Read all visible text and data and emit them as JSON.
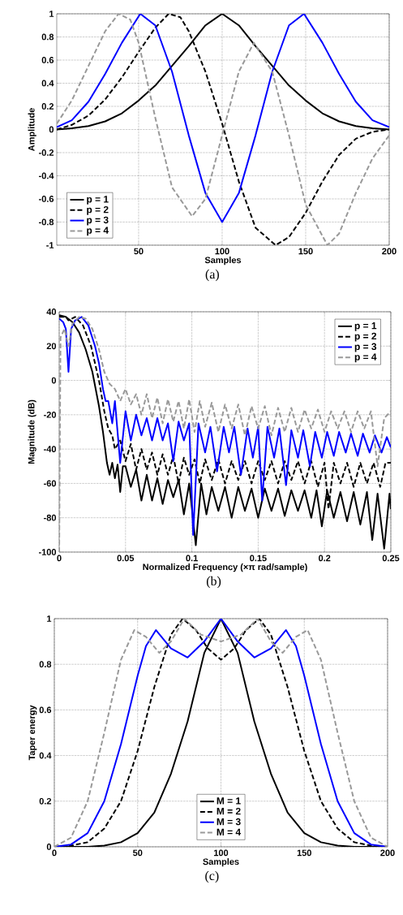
{
  "chart_data": [
    {
      "type": "line",
      "xlabel": "Samples",
      "ylabel": "Amplitude",
      "annotations": [
        "(a)"
      ],
      "xlim": [
        1,
        200
      ],
      "xticks": [
        50,
        100,
        150,
        200
      ],
      "ylim": [
        -1,
        1
      ],
      "yticks": [
        -1,
        -0.8,
        -0.6,
        -0.4,
        -0.2,
        0,
        0.2,
        0.4,
        0.6,
        0.8,
        1
      ],
      "grid": true,
      "legend": "bottom left",
      "series": [
        {
          "name": "p = 1",
          "color": "#000000",
          "line_style": "solid",
          "x": [
            1,
            10,
            20,
            30,
            40,
            50,
            60,
            70,
            80,
            90,
            100,
            110,
            120,
            130,
            140,
            150,
            160,
            170,
            180,
            190,
            200
          ],
          "values": [
            0,
            0.01,
            0.03,
            0.07,
            0.14,
            0.25,
            0.38,
            0.55,
            0.72,
            0.9,
            1,
            0.9,
            0.72,
            0.55,
            0.38,
            0.25,
            0.14,
            0.07,
            0.03,
            0.01,
            0
          ]
        },
        {
          "name": "p = 2",
          "color": "#000000",
          "line_style": "dashed",
          "x": [
            1,
            10,
            20,
            30,
            40,
            50,
            60,
            68,
            75,
            80,
            90,
            100,
            110,
            120,
            132,
            140,
            150,
            160,
            170,
            180,
            190,
            200
          ],
          "values": [
            0,
            0.04,
            0.12,
            0.26,
            0.45,
            0.67,
            0.88,
            1,
            0.97,
            0.85,
            0.5,
            0.05,
            -0.45,
            -0.85,
            -1,
            -0.93,
            -0.72,
            -0.45,
            -0.22,
            -0.08,
            -0.02,
            0
          ]
        },
        {
          "name": "p = 3",
          "color": "#0000ff",
          "line_style": "solid",
          "x": [
            1,
            10,
            20,
            30,
            40,
            51,
            60,
            70,
            80,
            90,
            100,
            110,
            120,
            130,
            140,
            149,
            160,
            170,
            180,
            190,
            200
          ],
          "values": [
            0.02,
            0.08,
            0.24,
            0.48,
            0.75,
            1,
            0.9,
            0.5,
            -0.05,
            -0.55,
            -0.8,
            -0.55,
            -0.05,
            0.5,
            0.9,
            1,
            0.75,
            0.48,
            0.24,
            0.08,
            0.02
          ]
        },
        {
          "name": "p = 4",
          "color": "#999999",
          "line_style": "dashed",
          "x": [
            1,
            10,
            20,
            30,
            38,
            45,
            50,
            60,
            70,
            82,
            90,
            100,
            110,
            119,
            130,
            140,
            150,
            163,
            170,
            180,
            190,
            200
          ],
          "values": [
            0.05,
            0.25,
            0.55,
            0.85,
            1,
            0.95,
            0.75,
            0.1,
            -0.5,
            -0.75,
            -0.6,
            -0.05,
            0.5,
            0.75,
            0.5,
            -0.05,
            -0.65,
            -1,
            -0.9,
            -0.55,
            -0.25,
            -0.05
          ]
        }
      ]
    },
    {
      "type": "line",
      "xlabel": "Normalized Frequency  (×π rad/sample)",
      "ylabel": "Magnitude (dB)",
      "annotations": [
        "(b)"
      ],
      "xlim": [
        0,
        0.25
      ],
      "xticks": [
        0,
        0.05,
        0.1,
        0.15,
        0.2,
        0.25
      ],
      "ylim": [
        -100,
        40
      ],
      "yticks": [
        -100,
        -80,
        -60,
        -40,
        -20,
        0,
        20,
        40
      ],
      "grid": true,
      "legend": "top right",
      "series": [
        {
          "name": "p = 1",
          "color": "#000000",
          "line_style": "solid",
          "x": [
            0,
            0.005,
            0.01,
            0.015,
            0.02,
            0.025,
            0.03,
            0.033,
            0.036,
            0.038,
            0.04,
            0.042,
            0.044,
            0.046,
            0.048,
            0.05,
            0.054,
            0.058,
            0.062,
            0.066,
            0.07,
            0.074,
            0.078,
            0.082,
            0.086,
            0.09,
            0.094,
            0.098,
            0.103,
            0.107,
            0.111,
            0.115,
            0.12,
            0.125,
            0.13,
            0.135,
            0.14,
            0.145,
            0.15,
            0.155,
            0.16,
            0.165,
            0.17,
            0.175,
            0.18,
            0.185,
            0.19,
            0.194,
            0.198,
            0.202,
            0.207,
            0.212,
            0.217,
            0.222,
            0.227,
            0.232,
            0.236,
            0.24,
            0.245,
            0.249,
            0.25
          ],
          "values": [
            38,
            37,
            34,
            28,
            18,
            5,
            -15,
            -30,
            -48,
            -55,
            -48,
            -57,
            -49,
            -65,
            -50,
            -50,
            -62,
            -52,
            -70,
            -55,
            -70,
            -57,
            -72,
            -58,
            -68,
            -58,
            -78,
            -60,
            -96,
            -60,
            -78,
            -62,
            -76,
            -62,
            -80,
            -62,
            -76,
            -63,
            -80,
            -63,
            -76,
            -63,
            -79,
            -64,
            -76,
            -64,
            -80,
            -64,
            -85,
            -64,
            -80,
            -65,
            -82,
            -65,
            -84,
            -65,
            -93,
            -66,
            -98,
            -66,
            -75
          ]
        },
        {
          "name": "p = 2",
          "color": "#000000",
          "line_style": "dashed",
          "x": [
            0,
            0.005,
            0.007,
            0.012,
            0.018,
            0.024,
            0.03,
            0.034,
            0.037,
            0.04,
            0.042,
            0.046,
            0.05,
            0.054,
            0.058,
            0.062,
            0.066,
            0.07,
            0.074,
            0.078,
            0.082,
            0.086,
            0.09,
            0.094,
            0.098,
            0.102,
            0.106,
            0.11,
            0.115,
            0.12,
            0.125,
            0.13,
            0.135,
            0.14,
            0.145,
            0.15,
            0.155,
            0.16,
            0.165,
            0.17,
            0.175,
            0.18,
            0.185,
            0.19,
            0.195,
            0.2,
            0.203,
            0.207,
            0.212,
            0.217,
            0.222,
            0.227,
            0.232,
            0.237,
            0.242,
            0.246,
            0.25
          ],
          "values": [
            37,
            37,
            35,
            37,
            32,
            20,
            0,
            -18,
            -28,
            -32,
            -40,
            -35,
            -47,
            -37,
            -52,
            -40,
            -52,
            -42,
            -55,
            -43,
            -55,
            -44,
            -60,
            -45,
            -55,
            -46,
            -60,
            -46,
            -58,
            -46,
            -60,
            -47,
            -58,
            -47,
            -60,
            -47,
            -58,
            -47,
            -60,
            -47,
            -58,
            -47,
            -60,
            -47,
            -62,
            -48,
            -75,
            -48,
            -60,
            -48,
            -62,
            -48,
            -60,
            -48,
            -62,
            -48,
            -48
          ]
        },
        {
          "name": "p = 3",
          "color": "#0000ff",
          "line_style": "solid",
          "x": [
            0,
            0.003,
            0.005,
            0.007,
            0.009,
            0.012,
            0.017,
            0.022,
            0.027,
            0.03,
            0.033,
            0.035,
            0.037,
            0.04,
            0.042,
            0.046,
            0.05,
            0.054,
            0.058,
            0.062,
            0.066,
            0.07,
            0.074,
            0.078,
            0.082,
            0.086,
            0.09,
            0.094,
            0.098,
            0.101,
            0.105,
            0.11,
            0.114,
            0.119,
            0.124,
            0.128,
            0.132,
            0.137,
            0.142,
            0.146,
            0.15,
            0.153,
            0.157,
            0.162,
            0.166,
            0.171,
            0.175,
            0.18,
            0.184,
            0.189,
            0.193,
            0.198,
            0.202,
            0.207,
            0.211,
            0.216,
            0.22,
            0.225,
            0.229,
            0.234,
            0.238,
            0.243,
            0.247,
            0.25
          ],
          "values": [
            36,
            34,
            30,
            5,
            30,
            35,
            37,
            32,
            20,
            10,
            -5,
            -12,
            -12,
            -25,
            -12,
            -48,
            -18,
            -35,
            -20,
            -32,
            -22,
            -35,
            -22,
            -35,
            -25,
            -47,
            -24,
            -35,
            -25,
            -90,
            -25,
            -42,
            -27,
            -53,
            -27,
            -42,
            -27,
            -55,
            -28,
            -45,
            -27,
            -70,
            -27,
            -45,
            -28,
            -61,
            -29,
            -45,
            -29,
            -50,
            -30,
            -45,
            -30,
            -44,
            -30,
            -42,
            -31,
            -44,
            -31,
            -42,
            -32,
            -42,
            -33,
            -39
          ]
        },
        {
          "name": "p = 4",
          "color": "#999999",
          "line_style": "dashed",
          "x": [
            0,
            0.001,
            0.004,
            0.007,
            0.01,
            0.015,
            0.02,
            0.025,
            0.03,
            0.034,
            0.038,
            0.042,
            0.046,
            0.05,
            0.054,
            0.058,
            0.062,
            0.066,
            0.07,
            0.074,
            0.078,
            0.082,
            0.086,
            0.09,
            0.094,
            0.098,
            0.102,
            0.106,
            0.11,
            0.115,
            0.12,
            0.125,
            0.13,
            0.135,
            0.14,
            0.145,
            0.15,
            0.155,
            0.16,
            0.165,
            0.17,
            0.175,
            0.18,
            0.185,
            0.19,
            0.195,
            0.2,
            0.205,
            0.21,
            0.215,
            0.22,
            0.225,
            0.23,
            0.235,
            0.24,
            0.245,
            0.25
          ],
          "values": [
            -100,
            25,
            30,
            20,
            33,
            37,
            36,
            30,
            18,
            5,
            -2,
            -5,
            -12,
            -5,
            -14,
            -8,
            -20,
            -8,
            -22,
            -10,
            -25,
            -11,
            -24,
            -12,
            -28,
            -11,
            -30,
            -12,
            -27,
            -13,
            -30,
            -14,
            -28,
            -14,
            -32,
            -15,
            -28,
            -15,
            -32,
            -16,
            -30,
            -16,
            -30,
            -17,
            -28,
            -17,
            -30,
            -18,
            -28,
            -18,
            -30,
            -18,
            -28,
            -18,
            -50,
            -22,
            -18
          ]
        }
      ]
    },
    {
      "type": "line",
      "xlabel": "Samples",
      "ylabel": "Taper energy",
      "annotations": [
        "(c)"
      ],
      "xlim": [
        0,
        200
      ],
      "xticks": [
        0,
        50,
        100,
        150,
        200
      ],
      "ylim": [
        0,
        1
      ],
      "yticks": [
        0,
        0.2,
        0.4,
        0.6,
        0.8,
        1
      ],
      "grid": true,
      "legend": "bottom",
      "series": [
        {
          "name": "M = 1",
          "color": "#000000",
          "line_style": "solid",
          "x": [
            0,
            20,
            30,
            40,
            50,
            60,
            70,
            80,
            90,
            100,
            110,
            120,
            130,
            140,
            150,
            160,
            170,
            180,
            200
          ],
          "values": [
            0,
            0,
            0.005,
            0.02,
            0.06,
            0.15,
            0.32,
            0.55,
            0.85,
            1,
            0.85,
            0.55,
            0.32,
            0.15,
            0.06,
            0.02,
            0.005,
            0,
            0
          ]
        },
        {
          "name": "M = 2",
          "color": "#000000",
          "line_style": "dashed",
          "x": [
            0,
            10,
            20,
            30,
            40,
            50,
            60,
            70,
            77,
            85,
            92,
            100,
            108,
            115,
            123,
            130,
            140,
            150,
            160,
            170,
            180,
            190,
            200
          ],
          "values": [
            0,
            0.005,
            0.02,
            0.08,
            0.2,
            0.42,
            0.7,
            0.93,
            1,
            0.95,
            0.87,
            0.82,
            0.87,
            0.95,
            1,
            0.93,
            0.7,
            0.42,
            0.2,
            0.08,
            0.02,
            0.005,
            0
          ]
        },
        {
          "name": "M = 3",
          "color": "#0000ff",
          "line_style": "solid",
          "x": [
            0,
            10,
            20,
            30,
            40,
            50,
            55,
            61,
            70,
            80,
            90,
            100,
            110,
            120,
            130,
            139,
            145,
            150,
            160,
            170,
            180,
            190,
            200
          ],
          "values": [
            0,
            0.01,
            0.06,
            0.2,
            0.45,
            0.75,
            0.88,
            0.95,
            0.87,
            0.83,
            0.9,
            1,
            0.9,
            0.83,
            0.87,
            0.95,
            0.88,
            0.75,
            0.45,
            0.2,
            0.06,
            0.01,
            0
          ]
        },
        {
          "name": "M = 4",
          "color": "#999999",
          "line_style": "dashed",
          "x": [
            0,
            10,
            20,
            30,
            40,
            48,
            55,
            63,
            70,
            78,
            88,
            100,
            112,
            122,
            130,
            137,
            145,
            152,
            160,
            170,
            180,
            190,
            200
          ],
          "values": [
            0,
            0.04,
            0.2,
            0.5,
            0.82,
            0.95,
            0.92,
            0.85,
            0.9,
            1,
            0.93,
            0.9,
            0.93,
            1,
            0.9,
            0.85,
            0.92,
            0.95,
            0.82,
            0.5,
            0.2,
            0.04,
            0
          ]
        }
      ]
    }
  ]
}
